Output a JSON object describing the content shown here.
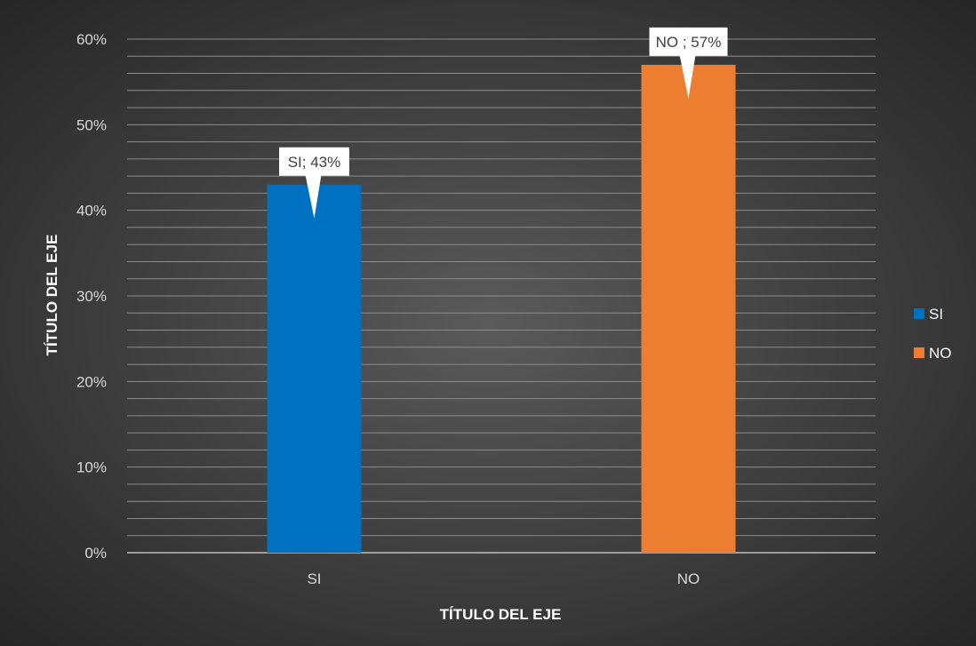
{
  "chart_data": {
    "type": "bar",
    "title": "",
    "categories": [
      "SI",
      "NO"
    ],
    "series": [
      {
        "name": "SI",
        "values": [
          43,
          null
        ],
        "color": "#0070c0"
      },
      {
        "name": "NO",
        "values": [
          null,
          57
        ],
        "color": "#ed7d31"
      }
    ],
    "data_labels": [
      "SI; 43%",
      "NO ; 57%"
    ],
    "xlabel": "TÍTULO DEL EJE",
    "ylabel": "TÍTULO DEL EJE",
    "ylim": [
      0,
      60
    ],
    "yticks": [
      "0%",
      "10%",
      "20%",
      "30%",
      "40%",
      "50%",
      "60%"
    ],
    "grid": true,
    "legend": {
      "position": "right",
      "entries": [
        "SI",
        "NO"
      ]
    },
    "colors": {
      "background_center": "#5a5a5a",
      "background_edge": "#262626",
      "gridline": "#8c8c8c",
      "axis_line": "#bfbfbf"
    }
  }
}
